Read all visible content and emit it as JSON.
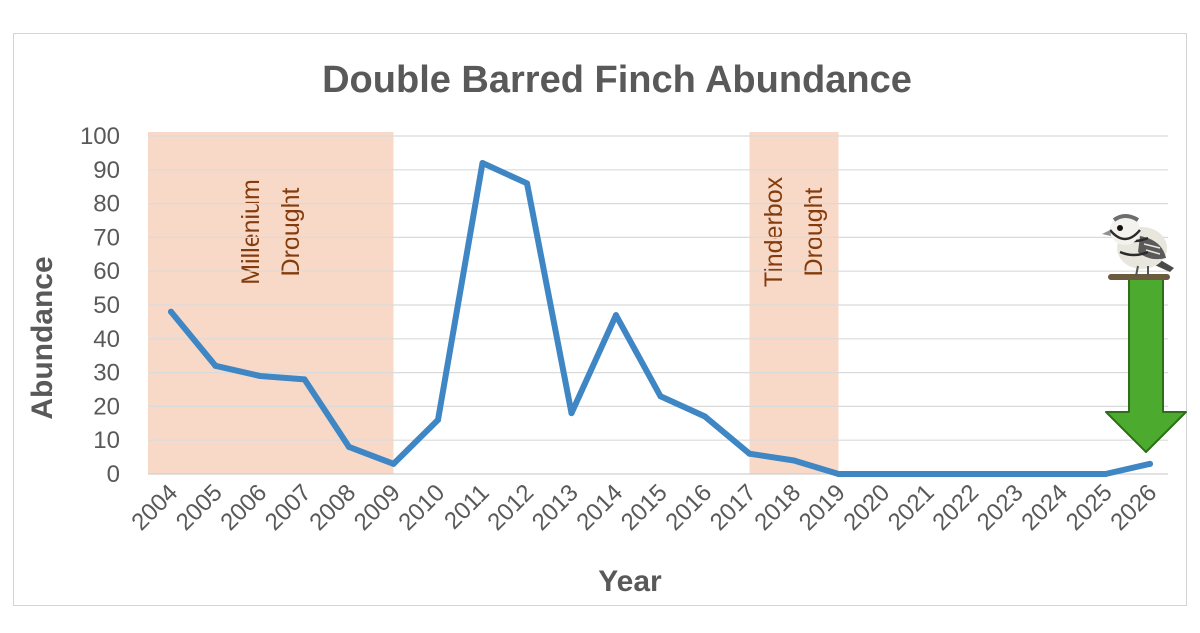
{
  "chart_data": {
    "type": "line",
    "title": "Double Barred Finch Abundance",
    "xlabel": "Year",
    "ylabel": "Abundance",
    "ylim": [
      0,
      100
    ],
    "y_ticks": [
      0,
      10,
      20,
      30,
      40,
      50,
      60,
      70,
      80,
      90,
      100
    ],
    "grid": true,
    "x": [
      "2004",
      "2005",
      "2006",
      "2007",
      "2008",
      "2009",
      "2010",
      "2011",
      "2012",
      "2013",
      "2014",
      "2015",
      "2016",
      "2017",
      "2018",
      "2019",
      "2020",
      "2021",
      "2022",
      "2023",
      "2024",
      "2025",
      "2026"
    ],
    "series": [
      {
        "values": [
          48,
          32,
          29,
          28,
          8,
          3,
          16,
          92,
          86,
          18,
          47,
          23,
          17,
          6,
          4,
          0,
          0,
          0,
          0,
          0,
          0,
          0,
          3
        ]
      }
    ],
    "bands": [
      {
        "from": "2004",
        "to": "2009",
        "label_line1": "Millenium",
        "label_line2": "Drought"
      },
      {
        "from": "2017",
        "to": "2019",
        "label_line1": "Tinderbox",
        "label_line2": "Drought"
      }
    ],
    "colors": {
      "line": "#3f86c4",
      "band": "#f8d9c8",
      "band_text": "#843c0c",
      "arrow": "#4caa2e",
      "arrow_stroke": "#2d6e18"
    },
    "icons": {
      "bird": "double-barred-finch-icon",
      "arrow": "down-arrow-icon"
    }
  }
}
